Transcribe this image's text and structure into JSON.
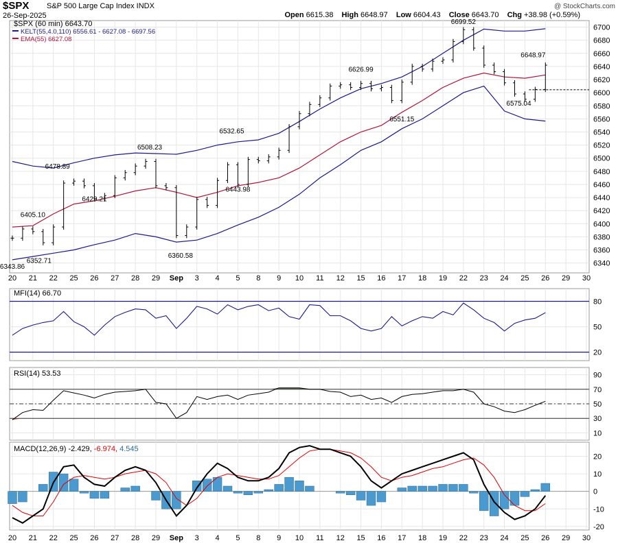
{
  "header": {
    "symbol": "$SPX",
    "name": "S&P 500 Large Cap Index INDX",
    "date": "26-Sep-2025",
    "copyright": "@ StockCharts.com",
    "open_label": "Open",
    "open": "6615.38",
    "high_label": "High",
    "high": "6648.97",
    "low_label": "Low",
    "low": "6604.43",
    "close_label": "Close",
    "close": "6643.70",
    "chg_label": "Chg",
    "chg": "+38.98 (+0.59%)"
  },
  "legend": {
    "price": "$SPX (60 min) 6643.70",
    "kelt": "KELT(55,4.0,110) 6556.61 - 6627.08 - 6697.56",
    "ema": "EMA(55) 6627.08",
    "mfi": "MFI(14) 66.70",
    "rsi": "RSI(14) 53.53",
    "macd_prefix": "MACD(12,26,9)",
    "macd_value": "-2.429,",
    "macd_signal": "-6.974,",
    "macd_hist": "4.545"
  },
  "colors": {
    "price": "#000000",
    "kelt": "#1a1a8c",
    "ema": "#b0143c",
    "grid": "#e6e6e6",
    "hist": "#4a9ad0",
    "rsi_over": "#3e5e3e",
    "rsi_under": "#8a4a4a"
  },
  "chart_data": [
    {
      "type": "ohlc",
      "title": "$SPX (60 min)",
      "x_tick_labels": [
        "20",
        "21",
        "22",
        "25",
        "26",
        "27",
        "28",
        "29",
        "Sep",
        "3",
        "4",
        "5",
        "8",
        "9",
        "10",
        "11",
        "12",
        "15",
        "16",
        "17",
        "18",
        "19",
        "22",
        "23",
        "24",
        "25",
        "26",
        "29",
        "30"
      ],
      "y_ticks": [
        6340,
        6360,
        6380,
        6400,
        6420,
        6440,
        6460,
        6480,
        6500,
        6520,
        6540,
        6560,
        6580,
        6600,
        6620,
        6640,
        6660,
        6680,
        6700
      ],
      "ylim": [
        6325,
        6710
      ],
      "reference_line": 6604.43,
      "annotations": [
        {
          "label": "6343.86",
          "x": 0.0,
          "y": 6343.86
        },
        {
          "label": "6405.10",
          "x": 1.0,
          "y": 6405.1
        },
        {
          "label": "6352.71",
          "x": 1.3,
          "y": 6352.71
        },
        {
          "label": "6478.89",
          "x": 2.2,
          "y": 6478.89
        },
        {
          "label": "6429.21",
          "x": 4.0,
          "y": 6429.21
        },
        {
          "label": "6508.23",
          "x": 6.7,
          "y": 6508.23
        },
        {
          "label": "6360.58",
          "x": 8.2,
          "y": 6360.58
        },
        {
          "label": "6532.65",
          "x": 10.7,
          "y": 6532.65
        },
        {
          "label": "6443.98",
          "x": 11.0,
          "y": 6443.98
        },
        {
          "label": "6626.99",
          "x": 17.0,
          "y": 6626.99
        },
        {
          "label": "6551.15",
          "x": 19.0,
          "y": 6551.15
        },
        {
          "label": "6699.52",
          "x": 22.0,
          "y": 6699.52
        },
        {
          "label": "6575.04",
          "x": 24.7,
          "y": 6575.04
        },
        {
          "label": "6648.97",
          "x": 25.4,
          "y": 6648.97
        }
      ],
      "series": [
        {
          "name": "$SPX",
          "kind": "close",
          "x": [
            0,
            0.5,
            1,
            1.5,
            2,
            2.5,
            3,
            3.5,
            4,
            4.5,
            5,
            5.5,
            6,
            6.5,
            7,
            7.5,
            8,
            8.5,
            9,
            9.5,
            10,
            10.5,
            11,
            11.5,
            12,
            12.5,
            13,
            13.5,
            14,
            14.5,
            15,
            15.5,
            16,
            16.5,
            17,
            17.5,
            18,
            18.5,
            19,
            19.5,
            20,
            20.5,
            21,
            21.5,
            22,
            22.5,
            23,
            23.5,
            24,
            24.5,
            25,
            25.5,
            26
          ],
          "y": [
            6378,
            6392,
            6388,
            6371,
            6395,
            6462,
            6465,
            6458,
            6438,
            6443,
            6470,
            6478,
            6488,
            6495,
            6458,
            6455,
            6382,
            6395,
            6437,
            6428,
            6466,
            6490,
            6460,
            6498,
            6496,
            6502,
            6512,
            6548,
            6568,
            6582,
            6592,
            6610,
            6612,
            6608,
            6614,
            6606,
            6608,
            6588,
            6616,
            6640,
            6636,
            6648,
            6650,
            6678,
            6696,
            6668,
            6642,
            6632,
            6615,
            6598,
            6590,
            6605,
            6642
          ]
        },
        {
          "name": "KELT upper",
          "kind": "line",
          "x": [
            0,
            1,
            2,
            3,
            4,
            5,
            6,
            7,
            8,
            9,
            10,
            11,
            12,
            13,
            14,
            15,
            16,
            17,
            18,
            19,
            20,
            21,
            22,
            23,
            24,
            25,
            26
          ],
          "y": [
            6495,
            6488,
            6485,
            6493,
            6500,
            6505,
            6508,
            6507,
            6506,
            6512,
            6520,
            6525,
            6528,
            6538,
            6556,
            6575,
            6592,
            6606,
            6614,
            6624,
            6640,
            6660,
            6680,
            6697,
            6694,
            6694,
            6697.56
          ]
        },
        {
          "name": "EMA(55)",
          "kind": "line",
          "x": [
            0,
            1,
            2,
            3,
            4,
            5,
            6,
            7,
            8,
            9,
            10,
            11,
            12,
            13,
            14,
            15,
            16,
            17,
            18,
            19,
            20,
            21,
            22,
            23,
            24,
            25,
            26
          ],
          "y": [
            6395,
            6397,
            6415,
            6430,
            6435,
            6442,
            6450,
            6455,
            6448,
            6440,
            6448,
            6458,
            6463,
            6470,
            6485,
            6505,
            6525,
            6540,
            6550,
            6570,
            6588,
            6608,
            6622,
            6630,
            6624,
            6622,
            6627.08
          ]
        },
        {
          "name": "KELT lower",
          "kind": "line",
          "x": [
            0,
            1,
            2,
            3,
            4,
            5,
            6,
            7,
            8,
            9,
            10,
            11,
            12,
            13,
            14,
            15,
            16,
            17,
            18,
            19,
            20,
            21,
            22,
            23,
            24,
            25,
            26
          ],
          "y": [
            6345,
            6350,
            6355,
            6360,
            6368,
            6375,
            6385,
            6380,
            6372,
            6375,
            6385,
            6398,
            6410,
            6425,
            6445,
            6470,
            6490,
            6512,
            6525,
            6545,
            6560,
            6580,
            6600,
            6610,
            6572,
            6560,
            6556.61
          ]
        }
      ]
    },
    {
      "type": "line",
      "title": "MFI(14)",
      "y_ticks": [
        20,
        50,
        80
      ],
      "ylim": [
        10,
        95
      ],
      "reference_lines": [
        20,
        80
      ],
      "series": [
        {
          "name": "MFI(14)",
          "x": [
            0,
            0.5,
            1,
            1.5,
            2,
            2.5,
            3,
            3.5,
            4,
            4.5,
            5,
            5.5,
            6,
            6.5,
            7,
            7.5,
            8,
            8.5,
            9,
            9.5,
            10,
            10.5,
            11,
            11.5,
            12,
            12.5,
            13,
            13.5,
            14,
            14.5,
            15,
            15.5,
            16,
            16.5,
            17,
            17.5,
            18,
            18.5,
            19,
            19.5,
            20,
            20.5,
            21,
            21.5,
            22,
            22.5,
            23,
            23.5,
            24,
            24.5,
            25,
            25.5,
            26
          ],
          "y": [
            40,
            48,
            52,
            55,
            57,
            68,
            56,
            50,
            40,
            52,
            62,
            67,
            71,
            70,
            60,
            63,
            48,
            60,
            74,
            71,
            65,
            76,
            70,
            74,
            76,
            69,
            72,
            62,
            59,
            76,
            75,
            63,
            63,
            57,
            48,
            45,
            48,
            62,
            51,
            57,
            62,
            60,
            68,
            64,
            78,
            70,
            60,
            55,
            45,
            54,
            58,
            60,
            66.7
          ]
        }
      ]
    },
    {
      "type": "line",
      "title": "RSI(14)",
      "y_ticks": [
        10,
        30,
        50,
        70,
        90
      ],
      "ylim": [
        0,
        100
      ],
      "reference_lines": [
        30,
        50,
        70
      ],
      "series": [
        {
          "name": "RSI(14)",
          "x": [
            0,
            0.5,
            1,
            1.5,
            2,
            2.5,
            3,
            3.5,
            4,
            4.5,
            5,
            5.5,
            6,
            6.5,
            7,
            7.5,
            8,
            8.5,
            9,
            9.5,
            10,
            10.5,
            11,
            11.5,
            12,
            12.5,
            13,
            13.5,
            14,
            14.5,
            15,
            15.5,
            16,
            16.5,
            17,
            17.5,
            18,
            18.5,
            19,
            19.5,
            20,
            20.5,
            21,
            21.5,
            22,
            22.5,
            23,
            23.5,
            24,
            24.5,
            25,
            25.5,
            26
          ],
          "y": [
            28,
            38,
            42,
            41,
            55,
            68,
            65,
            62,
            58,
            63,
            66,
            67,
            68,
            70,
            52,
            50,
            30,
            38,
            60,
            56,
            60,
            62,
            56,
            62,
            64,
            66,
            72,
            72,
            72,
            70,
            70,
            67,
            66,
            60,
            62,
            56,
            58,
            52,
            60,
            63,
            64,
            66,
            68,
            68,
            70,
            66,
            50,
            46,
            40,
            38,
            42,
            48,
            53.53
          ]
        }
      ]
    },
    {
      "type": "line",
      "title": "MACD(12,26,9)",
      "y_ticks": [
        -20,
        -10,
        0,
        10,
        20
      ],
      "ylim": [
        -22,
        28
      ],
      "series": [
        {
          "name": "MACD",
          "x": [
            0,
            0.5,
            1,
            1.5,
            2,
            2.5,
            3,
            3.5,
            4,
            4.5,
            5,
            5.5,
            6,
            6.5,
            7,
            7.5,
            8,
            8.5,
            9,
            9.5,
            10,
            10.5,
            11,
            11.5,
            12,
            12.5,
            13,
            13.5,
            14,
            14.5,
            15,
            15.5,
            16,
            16.5,
            17,
            17.5,
            18,
            18.5,
            19,
            19.5,
            20,
            20.5,
            21,
            21.5,
            22,
            22.5,
            23,
            23.5,
            24,
            24.5,
            25,
            25.5,
            26
          ],
          "y": [
            -15,
            -18,
            -14,
            -10,
            5,
            14,
            15,
            8,
            4,
            3,
            8,
            12,
            14,
            12,
            5,
            -5,
            -14,
            -8,
            2,
            10,
            16,
            13,
            8,
            6,
            6,
            8,
            13,
            22,
            25,
            26,
            24,
            24,
            22,
            20,
            14,
            6,
            2,
            6,
            10,
            12,
            14,
            16,
            18,
            20,
            22,
            18,
            4,
            -6,
            -12,
            -16,
            -14,
            -10,
            -2.429
          ]
        },
        {
          "name": "Signal",
          "x": [
            0,
            0.5,
            1,
            1.5,
            2,
            2.5,
            3,
            3.5,
            4,
            4.5,
            5,
            5.5,
            6,
            6.5,
            7,
            7.5,
            8,
            8.5,
            9,
            9.5,
            10,
            10.5,
            11,
            11.5,
            12,
            12.5,
            13,
            13.5,
            14,
            14.5,
            15,
            15.5,
            16,
            16.5,
            17,
            17.5,
            18,
            18.5,
            19,
            19.5,
            20,
            20.5,
            21,
            21.5,
            22,
            22.5,
            23,
            23.5,
            24,
            24.5,
            25,
            25.5,
            26
          ],
          "y": [
            -8,
            -12,
            -14,
            -14,
            -6,
            4,
            8,
            9,
            8,
            7,
            8,
            10,
            11,
            12,
            10,
            5,
            -4,
            -8,
            -4,
            3,
            8,
            10,
            9,
            8,
            7,
            7,
            9,
            14,
            19,
            23,
            24,
            24,
            23,
            22,
            19,
            14,
            8,
            6,
            8,
            9,
            11,
            13,
            14,
            16,
            18,
            19,
            15,
            8,
            -2,
            -8,
            -11,
            -11,
            -6.974
          ]
        },
        {
          "name": "Histogram",
          "x": [
            0,
            0.5,
            1,
            1.5,
            2,
            2.5,
            3,
            3.5,
            4,
            4.5,
            5,
            5.5,
            6,
            6.5,
            7,
            7.5,
            8,
            8.5,
            9,
            9.5,
            10,
            10.5,
            11,
            11.5,
            12,
            12.5,
            13,
            13.5,
            14,
            14.5,
            15,
            15.5,
            16,
            16.5,
            17,
            17.5,
            18,
            18.5,
            19,
            19.5,
            20,
            20.5,
            21,
            21.5,
            22,
            22.5,
            23,
            23.5,
            24,
            24.5,
            25,
            25.5,
            26
          ],
          "y": [
            -7,
            -6,
            0,
            4,
            11,
            10,
            7,
            -1,
            -4,
            -4,
            0,
            2,
            3,
            0,
            -5,
            -10,
            -10,
            0,
            6,
            7,
            8,
            3,
            -1,
            -2,
            -1,
            1,
            4,
            8,
            6,
            3,
            0,
            0,
            -1,
            -2,
            -5,
            -8,
            -6,
            0,
            2,
            3,
            3,
            3,
            4,
            4,
            4,
            -1,
            -11,
            -14,
            -10,
            -8,
            -3,
            1,
            4.545
          ]
        }
      ]
    }
  ]
}
